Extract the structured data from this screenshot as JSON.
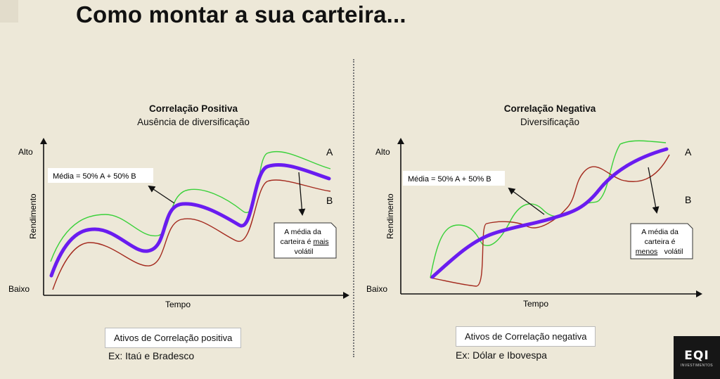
{
  "slide": {
    "title": "Como montar a sua carteira...",
    "logo_text": "EQI",
    "logo_subtext": "INVESTIMENTOS"
  },
  "panels": [
    {
      "title": "Correlação Positiva",
      "subtitle": "Ausência de diversificação",
      "ylabel": "Rendimento",
      "y_high": "Alto",
      "y_low": "Baixo",
      "xlabel": "Tempo",
      "series_a_label": "A",
      "series_b_label": "B",
      "average_box": "Média = 50% A + 50% B",
      "note_lines": [
        "A média da",
        "carteira é",
        "mais",
        "volátil"
      ],
      "tag": "Ativos de Correlação positiva",
      "example": "Ex: Itaú e Bradesco"
    },
    {
      "title": "Correlação Negativa",
      "subtitle": "Diversificação",
      "ylabel": "Rendimento",
      "y_high": "Alto",
      "y_low": "Baixo",
      "xlabel": "Tempo",
      "series_a_label": "A",
      "series_b_label": "B",
      "average_box": "Média = 50% A + 50% B",
      "note_lines": [
        "A média da",
        "carteira é",
        "menos",
        "volátil"
      ],
      "tag": "Ativos de Correlação negativa",
      "example": "Ex: Dólar e Ibovespa"
    }
  ],
  "colors": {
    "series_a": "#3ad13a",
    "series_b": "#a42a1e",
    "average": "#6a1cf0",
    "background": "#ede8d8"
  }
}
